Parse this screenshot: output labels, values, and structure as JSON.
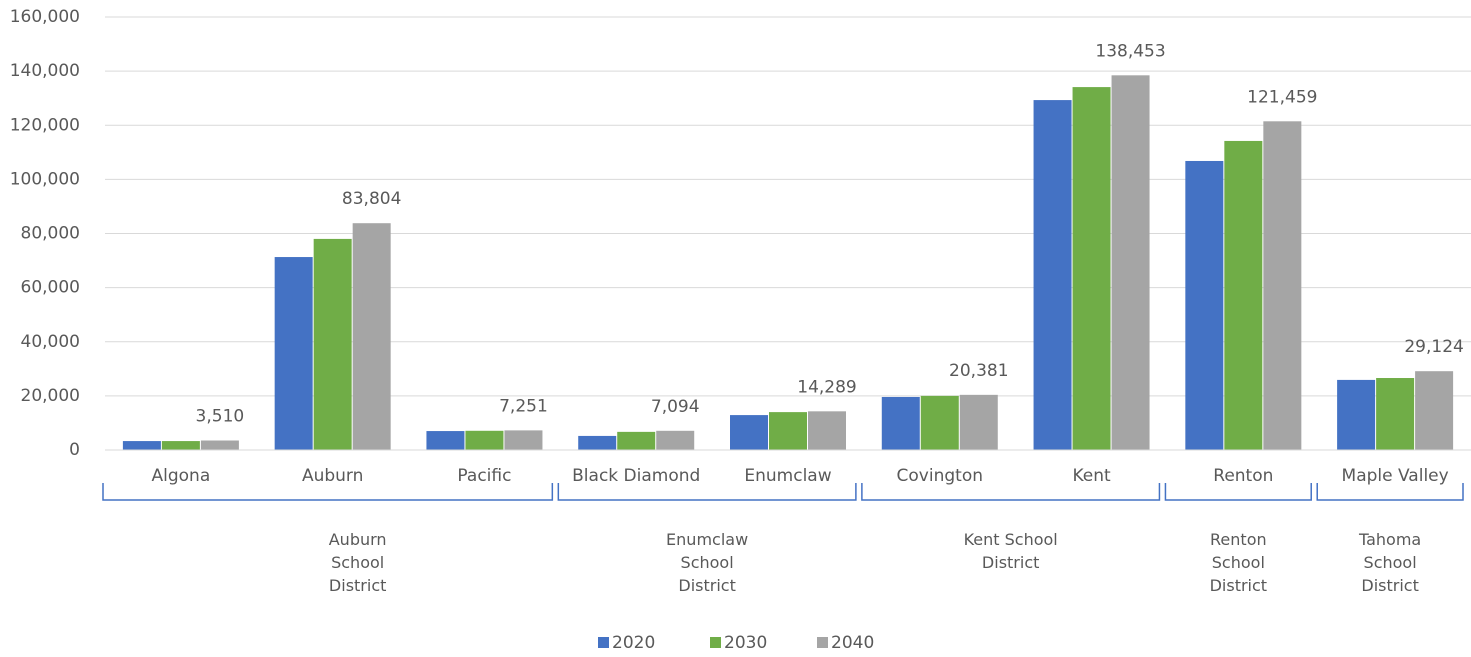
{
  "chart_data": {
    "type": "bar",
    "categories": [
      "Algona",
      "Auburn",
      "Pacific",
      "Black Diamond",
      "Enumclaw",
      "Covington",
      "Kent",
      "Renton",
      "Maple Valley"
    ],
    "groups": [
      {
        "label": "Auburn School District",
        "size": 3
      },
      {
        "label": "Enumclaw School District",
        "size": 2
      },
      {
        "label": "Kent School District",
        "size": 2
      },
      {
        "label": "Renton School District",
        "size": 1
      },
      {
        "label": "Tahoma School District",
        "size": 1
      }
    ],
    "series": [
      {
        "name": "2020",
        "color": "#4472c4",
        "values": [
          3300,
          71300,
          7000,
          5200,
          12900,
          19600,
          129300,
          106800,
          25900
        ]
      },
      {
        "name": "2030",
        "color": "#70ad47",
        "values": [
          3300,
          78000,
          7100,
          6700,
          14000,
          20000,
          134100,
          114200,
          26600
        ]
      },
      {
        "name": "2040",
        "color": "#a5a5a5",
        "values": [
          3510,
          83804,
          7251,
          7094,
          14289,
          20381,
          138453,
          121459,
          29124
        ],
        "value_labels": [
          "3,510",
          "83,804",
          "7,251",
          "7,094",
          "14,289",
          "20,381",
          "138,453",
          "121,459",
          "29,124"
        ]
      }
    ],
    "ylim": [
      0,
      160000
    ],
    "yticks": [
      0,
      {
        "value": 20000,
        "label": "20,000"
      },
      {
        "value": 40000,
        "label": "40,000"
      },
      {
        "value": 60000,
        "label": "60,000"
      },
      {
        "value": 80000,
        "label": "80,000"
      },
      {
        "value": 100000,
        "label": "100,000"
      },
      {
        "value": 120000,
        "label": "120,000"
      },
      {
        "value": 140000,
        "label": "140,000"
      },
      {
        "value": 160000,
        "label": "160,000"
      }
    ],
    "grid": true,
    "legend": "bottom"
  }
}
